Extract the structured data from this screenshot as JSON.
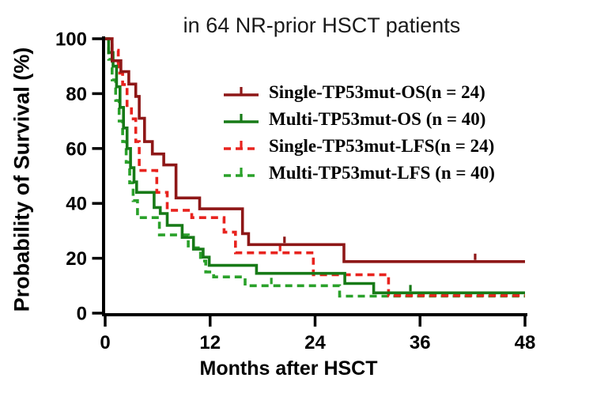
{
  "chart_data": {
    "type": "line",
    "subtype": "kaplan-meier-step",
    "title": "in 64 NR-prior HSCT patients",
    "xlabel": "Months after HSCT",
    "ylabel": "Probability of Survival (%)",
    "xlim": [
      0,
      48
    ],
    "ylim": [
      0,
      100
    ],
    "xticks": [
      0,
      12,
      24,
      36,
      48
    ],
    "yticks": [
      0,
      20,
      40,
      60,
      80,
      100
    ],
    "grid": false,
    "legend_position": "upper-right-inside",
    "axis_color": "#000000",
    "series": [
      {
        "name": "single-tp53mut-os",
        "label": "Single-TP53mut-OS(n = 24)",
        "n": 24,
        "color": "#8e1717",
        "dash": "solid",
        "start": 100,
        "drops": [
          [
            0.8,
            92
          ],
          [
            1.8,
            88
          ],
          [
            2.7,
            83.5
          ],
          [
            3.5,
            79
          ],
          [
            3.9,
            71
          ],
          [
            4.5,
            62.5
          ],
          [
            5.4,
            58
          ],
          [
            6.7,
            54
          ],
          [
            8.1,
            42
          ],
          [
            10.8,
            38
          ],
          [
            15.7,
            29
          ],
          [
            16.4,
            25
          ],
          [
            27.3,
            18.8
          ]
        ],
        "end_x": 48,
        "censor_ticks": [
          [
            20.5,
            25
          ],
          [
            42.3,
            18.8
          ]
        ]
      },
      {
        "name": "multi-tp53mut-os",
        "label": "Multi-TP53mut-OS (n = 40)",
        "n": 40,
        "color": "#177a17",
        "dash": "solid",
        "start": 100,
        "drops": [
          [
            0.4,
            95
          ],
          [
            0.9,
            90
          ],
          [
            1.3,
            82.5
          ],
          [
            1.7,
            75
          ],
          [
            2.1,
            67.5
          ],
          [
            2.5,
            60
          ],
          [
            2.9,
            53
          ],
          [
            3.3,
            47.8
          ],
          [
            3.6,
            44
          ],
          [
            5.6,
            38.5
          ],
          [
            6.3,
            36.3
          ],
          [
            7.1,
            32
          ],
          [
            8.8,
            27.6
          ],
          [
            10.1,
            23.3
          ],
          [
            11.2,
            20.4
          ],
          [
            11.9,
            17.4
          ],
          [
            17.3,
            14.5
          ],
          [
            27.4,
            10.8
          ],
          [
            30.7,
            7.4
          ]
        ],
        "end_x": 48,
        "censor_ticks": [
          [
            34.9,
            7.4
          ]
        ]
      },
      {
        "name": "single-tp53mut-lfs",
        "label": "Single-TP53mut-LFS(n = 24)",
        "n": 24,
        "color": "#e8231e",
        "dash": "dashed",
        "start": 100,
        "drops": [
          [
            0.8,
            95.8
          ],
          [
            1.5,
            87.5
          ],
          [
            2.0,
            83.3
          ],
          [
            2.5,
            75
          ],
          [
            3.0,
            70.8
          ],
          [
            3.5,
            62.5
          ],
          [
            3.9,
            52
          ],
          [
            5.9,
            44
          ],
          [
            7.1,
            37.5
          ],
          [
            9.9,
            34.8
          ],
          [
            13.6,
            29.5
          ],
          [
            14.9,
            22
          ],
          [
            23.8,
            14
          ],
          [
            32.4,
            6.4
          ]
        ],
        "end_x": 48,
        "censor_ticks": [
          [
            20.0,
            22
          ]
        ]
      },
      {
        "name": "multi-tp53mut-lfs",
        "label": "Multi-TP53mut-LFS (n = 40)",
        "n": 40,
        "color": "#2aa12a",
        "dash": "dashed",
        "start": 100,
        "drops": [
          [
            0.4,
            92.5
          ],
          [
            0.8,
            85
          ],
          [
            1.2,
            77.5
          ],
          [
            1.6,
            70
          ],
          [
            2.0,
            62.5
          ],
          [
            2.4,
            55
          ],
          [
            2.8,
            47.5
          ],
          [
            3.2,
            41
          ],
          [
            3.7,
            34.8
          ],
          [
            6.2,
            28.5
          ],
          [
            9.5,
            23.8
          ],
          [
            10.9,
            19
          ],
          [
            11.5,
            15
          ],
          [
            12.4,
            13.2
          ],
          [
            16.0,
            10
          ],
          [
            26.8,
            6.2
          ]
        ],
        "end_x": 48,
        "censor_ticks": [
          [
            19.0,
            10
          ]
        ]
      }
    ]
  }
}
